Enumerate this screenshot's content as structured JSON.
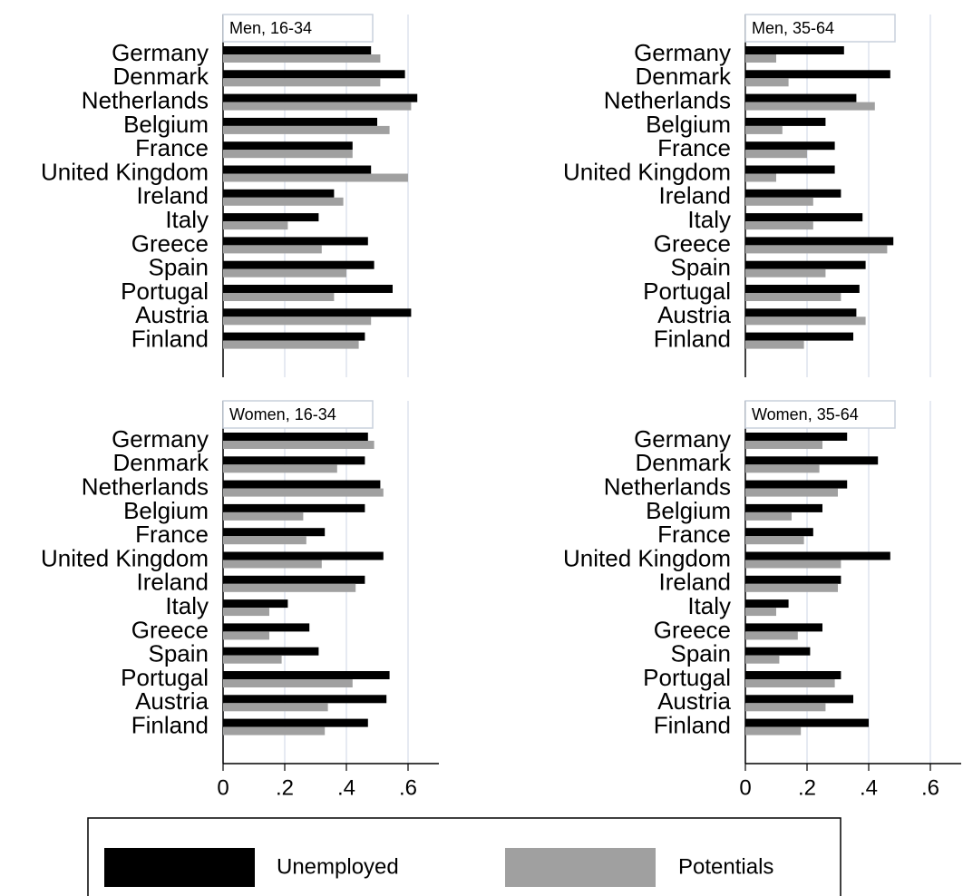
{
  "chart_data": {
    "type": "bar",
    "categories": [
      "Germany",
      "Denmark",
      "Netherlands",
      "Belgium",
      "France",
      "United Kingdom",
      "Ireland",
      "Italy",
      "Greece",
      "Spain",
      "Portugal",
      "Austria",
      "Finland"
    ],
    "xlim": [
      0,
      0.7
    ],
    "legend": "bottom",
    "series": [
      {
        "name": "Unemployed",
        "color": "#000000"
      },
      {
        "name": "Potentials",
        "color": "#a0a0a0"
      }
    ],
    "panels": [
      {
        "title": "Men, 16-34",
        "xticks": [
          0.2,
          0.4,
          0.6
        ],
        "values": [
          [
            0.48,
            0.59,
            0.63,
            0.5,
            0.42,
            0.48,
            0.36,
            0.31,
            0.47,
            0.49,
            0.55,
            0.61,
            0.46
          ],
          [
            0.51,
            0.51,
            0.61,
            0.54,
            0.42,
            0.6,
            0.39,
            0.21,
            0.32,
            0.4,
            0.36,
            0.48,
            0.44
          ]
        ]
      },
      {
        "title": "Men,  35-64",
        "xticks": [
          0.2,
          0.4,
          0.6
        ],
        "values": [
          [
            0.32,
            0.47,
            0.36,
            0.26,
            0.29,
            0.29,
            0.31,
            0.38,
            0.48,
            0.39,
            0.37,
            0.36,
            0.35
          ],
          [
            0.1,
            0.14,
            0.42,
            0.12,
            0.2,
            0.1,
            0.22,
            0.22,
            0.46,
            0.26,
            0.31,
            0.39,
            0.19
          ]
        ]
      },
      {
        "title": "Women, 16-34",
        "xticks": [
          0,
          {
            "value": 0.2,
            "label": ".2"
          },
          {
            "value": 0.4,
            "label": ".4"
          },
          {
            "value": 0.6,
            "label": ".6"
          }
        ],
        "values": [
          [
            0.47,
            0.46,
            0.51,
            0.46,
            0.33,
            0.52,
            0.46,
            0.21,
            0.28,
            0.31,
            0.54,
            0.53,
            0.47
          ],
          [
            0.49,
            0.37,
            0.52,
            0.26,
            0.27,
            0.32,
            0.43,
            0.15,
            0.15,
            0.19,
            0.42,
            0.34,
            0.33
          ]
        ]
      },
      {
        "title": "Women,  35-64",
        "xticks": [
          0,
          {
            "value": 0.2,
            "label": ".2"
          },
          {
            "value": 0.4,
            "label": ".4"
          },
          {
            "value": 0.6,
            "label": ".6"
          }
        ],
        "values": [
          [
            0.33,
            0.43,
            0.33,
            0.25,
            0.22,
            0.47,
            0.31,
            0.14,
            0.25,
            0.21,
            0.31,
            0.35,
            0.4
          ],
          [
            0.25,
            0.24,
            0.3,
            0.15,
            0.19,
            0.31,
            0.3,
            0.1,
            0.17,
            0.11,
            0.29,
            0.26,
            0.18
          ]
        ]
      }
    ]
  }
}
